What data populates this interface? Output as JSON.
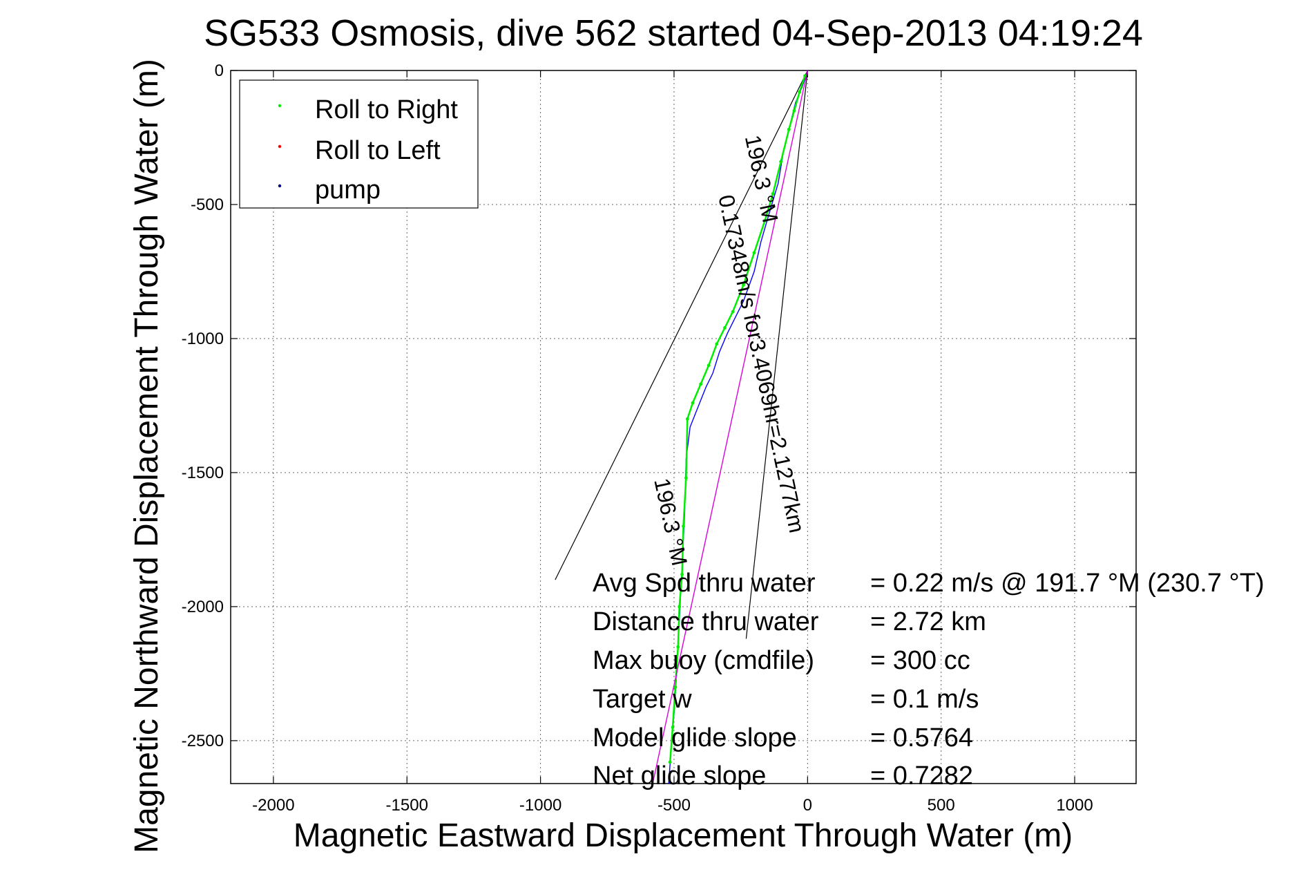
{
  "chart_data": {
    "type": "line",
    "title": "SG533 Osmosis, dive 562 started 04-Sep-2013 04:19:24",
    "xlabel": "Magnetic Eastward Displacement Through Water (m)",
    "ylabel": "Magnetic Northward Displacement Through Water (m)",
    "xlim": [
      -2160,
      1230
    ],
    "ylim": [
      -2660,
      0
    ],
    "grid": true,
    "x_ticks": [
      -2000,
      -1500,
      -1000,
      -500,
      0,
      500,
      1000
    ],
    "y_ticks": [
      0,
      -500,
      -1000,
      -1500,
      -2000,
      -2500
    ],
    "x_tick_labels": [
      "-2000",
      "-1500",
      "-1000",
      "-500",
      "0",
      "500",
      "1000"
    ],
    "y_tick_labels": [
      "0",
      "-500",
      "-1000",
      "-1500",
      "-2000",
      "-2500"
    ],
    "legend": {
      "position": "top-left",
      "entries": [
        {
          "label": "Roll to Right",
          "color": "#00ee00"
        },
        {
          "label": "Roll to Left",
          "color": "#ff0000"
        },
        {
          "label": "pump",
          "color": "#000080"
        }
      ]
    },
    "series": [
      {
        "color": "#0000ff",
        "x": [
          0,
          -20,
          -45,
          -60,
          -90,
          -110,
          -140,
          -175,
          -200,
          -240,
          -270,
          -300,
          -330,
          -355,
          -380,
          -400,
          -420,
          -440,
          -455,
          -460,
          -470,
          -480,
          -490,
          -500,
          -510,
          -520
        ],
        "y": [
          0,
          -60,
          -120,
          -180,
          -300,
          -420,
          -520,
          -640,
          -750,
          -860,
          -920,
          -980,
          -1050,
          -1130,
          -1180,
          -1230,
          -1280,
          -1330,
          -1450,
          -1650,
          -1850,
          -2050,
          -2250,
          -2400,
          -2520,
          -2660
        ]
      },
      {
        "color": "#00ee00",
        "x": [
          -10,
          -30,
          -50,
          -70,
          -100,
          -130,
          -160,
          -200,
          -240,
          -280,
          -310,
          -340,
          -370,
          -400,
          -430,
          -450,
          -455,
          -465,
          -470,
          -480,
          -485,
          -495,
          -505,
          -515
        ],
        "y": [
          -20,
          -80,
          -150,
          -220,
          -340,
          -460,
          -560,
          -680,
          -800,
          -900,
          -960,
          -1020,
          -1100,
          -1170,
          -1240,
          -1300,
          -1520,
          -1700,
          -1880,
          -2000,
          -2150,
          -2300,
          -2450,
          -2580
        ]
      },
      {
        "color": "#dd00dd",
        "x": [
          0,
          -580
        ],
        "y": [
          0,
          -2660
        ]
      }
    ],
    "bearing_lines": [
      {
        "x": [
          0,
          -945
        ],
        "y": [
          0,
          -1900
        ]
      },
      {
        "x": [
          0,
          -230
        ],
        "y": [
          0,
          -2120
        ]
      }
    ],
    "annotations": [
      {
        "text": "0.17348m/s for3.4069hr=2.1277km",
        "x": -200,
        "y": -1100,
        "angle": 78
      },
      {
        "text": "196.3 °M",
        "x": -200,
        "y": -410,
        "angle": 78
      },
      {
        "text": "196.3 °M",
        "x": -540,
        "y": -1690,
        "angle": 78
      }
    ],
    "stats": [
      {
        "label": "Avg Spd thru water",
        "value": "=  0.22 m/s @ 191.7 °M (230.7 °T)"
      },
      {
        "label": "Distance thru water",
        "value": "=  2.72 km"
      },
      {
        "label": "Max buoy (cmdfile)",
        "value": "= 300 cc"
      },
      {
        "label": "Target w",
        "value": "= 0.1 m/s"
      },
      {
        "label": "Model glide slope",
        "value": "= 0.5764"
      },
      {
        "label": "Net glide slope",
        "value": "= 0.7282"
      }
    ]
  }
}
